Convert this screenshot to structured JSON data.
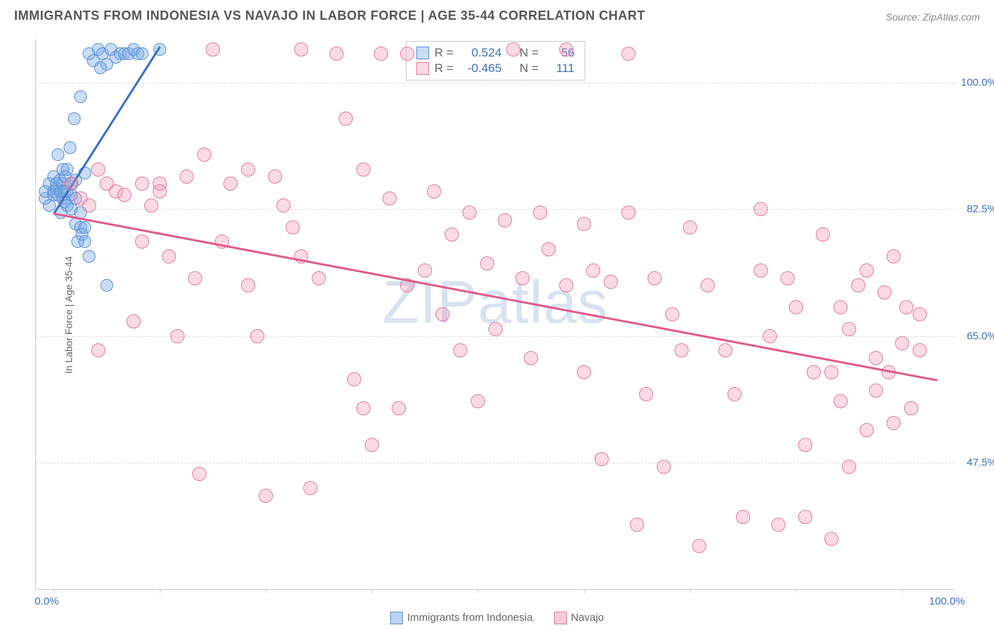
{
  "title": "IMMIGRANTS FROM INDONESIA VS NAVAJO IN LABOR FORCE | AGE 35-44 CORRELATION CHART",
  "source": "Source: ZipAtlas.com",
  "y_axis_title": "In Labor Force | Age 35-44",
  "watermark_bold": "ZIP",
  "watermark_light": "atlas",
  "x_labels": {
    "min": "0.0%",
    "max": "100.0%"
  },
  "y_ticks": [
    {
      "value": 100.0,
      "label": "100.0%"
    },
    {
      "value": 82.5,
      "label": "82.5%"
    },
    {
      "value": 65.0,
      "label": "65.0%"
    },
    {
      "value": 47.5,
      "label": "47.5%"
    }
  ],
  "x_ticks_pct": [
    0,
    12,
    24,
    36,
    48,
    60,
    72,
    84,
    96
  ],
  "x_range": [
    -2,
    102
  ],
  "y_range": [
    30,
    106
  ],
  "series": [
    {
      "name": "Immigrants from Indonesia",
      "key": "indonesia",
      "fill": "rgba(120,170,230,0.4)",
      "stroke": "#5a8fd6",
      "marker_radius": 9,
      "R_label": "R =",
      "R": "0.524",
      "N_label": "N =",
      "N": "56",
      "trend": {
        "x1": 0,
        "y1": 82,
        "x2": 12,
        "y2": 105,
        "color": "#3b6fc4"
      },
      "points": [
        [
          -1,
          84
        ],
        [
          -1,
          85
        ],
        [
          -0.5,
          86
        ],
        [
          -0.5,
          83
        ],
        [
          0,
          85
        ],
        [
          0,
          84.5
        ],
        [
          0,
          87
        ],
        [
          0.3,
          86
        ],
        [
          0.3,
          85.3
        ],
        [
          0.5,
          90
        ],
        [
          0.5,
          84.5
        ],
        [
          0.7,
          86.5
        ],
        [
          0.8,
          82
        ],
        [
          0.8,
          85
        ],
        [
          1,
          84
        ],
        [
          1,
          86
        ],
        [
          1,
          88
        ],
        [
          1.2,
          85
        ],
        [
          1.3,
          83.5
        ],
        [
          1.3,
          87
        ],
        [
          1.5,
          83
        ],
        [
          1.5,
          85
        ],
        [
          1.5,
          88
        ],
        [
          1.8,
          91
        ],
        [
          2,
          84.5
        ],
        [
          2,
          86
        ],
        [
          2,
          82.5
        ],
        [
          2.3,
          95
        ],
        [
          2.5,
          86.5
        ],
        [
          2.5,
          80.5
        ],
        [
          2.5,
          84
        ],
        [
          2.7,
          78
        ],
        [
          3,
          82
        ],
        [
          3,
          80
        ],
        [
          3,
          98
        ],
        [
          3.2,
          79
        ],
        [
          3.5,
          78
        ],
        [
          3.5,
          87.5
        ],
        [
          3.5,
          80
        ],
        [
          4,
          76
        ],
        [
          4,
          104
        ],
        [
          4.5,
          103
        ],
        [
          5,
          104.5
        ],
        [
          5.5,
          104
        ],
        [
          6,
          72
        ],
        [
          6.5,
          104.5
        ],
        [
          7,
          103.5
        ],
        [
          7.5,
          104
        ],
        [
          8,
          104
        ],
        [
          8.5,
          104
        ],
        [
          9,
          104.5
        ],
        [
          9.5,
          104
        ],
        [
          10,
          104
        ],
        [
          12,
          104.5
        ],
        [
          6,
          102.5
        ],
        [
          5.3,
          102
        ]
      ]
    },
    {
      "name": "Navajo",
      "key": "navajo",
      "fill": "rgba(240,150,180,0.35)",
      "stroke": "#e57aa0",
      "marker_radius": 10,
      "R_label": "R =",
      "R": "-0.465",
      "N_label": "N =",
      "N": "111",
      "trend": {
        "x1": 0,
        "y1": 82,
        "x2": 100,
        "y2": 59,
        "color": "#e05a8c"
      },
      "points": [
        [
          2,
          86
        ],
        [
          3,
          84
        ],
        [
          4,
          83
        ],
        [
          5,
          88
        ],
        [
          5,
          63
        ],
        [
          6,
          86
        ],
        [
          7,
          85
        ],
        [
          8,
          84.5
        ],
        [
          9,
          67
        ],
        [
          10,
          78
        ],
        [
          10,
          86
        ],
        [
          11,
          83
        ],
        [
          12,
          86
        ],
        [
          12,
          85
        ],
        [
          13,
          76
        ],
        [
          14,
          65
        ],
        [
          15,
          87
        ],
        [
          16,
          73
        ],
        [
          16.5,
          46
        ],
        [
          17,
          90
        ],
        [
          18,
          104.5
        ],
        [
          19,
          78
        ],
        [
          20,
          86
        ],
        [
          22,
          88
        ],
        [
          22,
          72
        ],
        [
          23,
          65
        ],
        [
          24,
          43
        ],
        [
          25,
          87
        ],
        [
          26,
          83
        ],
        [
          27,
          80
        ],
        [
          28,
          76
        ],
        [
          28,
          104.5
        ],
        [
          29,
          44
        ],
        [
          30,
          73
        ],
        [
          32,
          104
        ],
        [
          33,
          95
        ],
        [
          34,
          59
        ],
        [
          35,
          55
        ],
        [
          35,
          88
        ],
        [
          36,
          50
        ],
        [
          37,
          104
        ],
        [
          38,
          84
        ],
        [
          39,
          55
        ],
        [
          40,
          104
        ],
        [
          40,
          72
        ],
        [
          42,
          74
        ],
        [
          43,
          85
        ],
        [
          44,
          68
        ],
        [
          45,
          79
        ],
        [
          46,
          63
        ],
        [
          47,
          82
        ],
        [
          48,
          56
        ],
        [
          49,
          75
        ],
        [
          50,
          66
        ],
        [
          51,
          81
        ],
        [
          52,
          104.5
        ],
        [
          53,
          73
        ],
        [
          54,
          62
        ],
        [
          55,
          82
        ],
        [
          56,
          77
        ],
        [
          58,
          72
        ],
        [
          58,
          104.5
        ],
        [
          60,
          80.5
        ],
        [
          60,
          60
        ],
        [
          61,
          74
        ],
        [
          62,
          48
        ],
        [
          63,
          72.5
        ],
        [
          65,
          82
        ],
        [
          65,
          104
        ],
        [
          66,
          39
        ],
        [
          67,
          57
        ],
        [
          68,
          73
        ],
        [
          69,
          47
        ],
        [
          70,
          68
        ],
        [
          71,
          63
        ],
        [
          72,
          80
        ],
        [
          73,
          36
        ],
        [
          74,
          72
        ],
        [
          76,
          63
        ],
        [
          77,
          57
        ],
        [
          78,
          40
        ],
        [
          80,
          74
        ],
        [
          80,
          82.5
        ],
        [
          81,
          65
        ],
        [
          82,
          39
        ],
        [
          83,
          73
        ],
        [
          84,
          69
        ],
        [
          85,
          50
        ],
        [
          85,
          40
        ],
        [
          86,
          60
        ],
        [
          87,
          79
        ],
        [
          88,
          60
        ],
        [
          88,
          37
        ],
        [
          89,
          56
        ],
        [
          89,
          69
        ],
        [
          90,
          66
        ],
        [
          90,
          47
        ],
        [
          91,
          72
        ],
        [
          92,
          74
        ],
        [
          92,
          52
        ],
        [
          93,
          57.5
        ],
        [
          93,
          62
        ],
        [
          94,
          71
        ],
        [
          94.5,
          60
        ],
        [
          95,
          76
        ],
        [
          95,
          53
        ],
        [
          96,
          64
        ],
        [
          96.5,
          69
        ],
        [
          97,
          55
        ],
        [
          98,
          68
        ],
        [
          98,
          63
        ]
      ]
    }
  ],
  "legend_bottom": [
    {
      "swatch_fill": "rgba(120,170,230,0.5)",
      "swatch_stroke": "#5a8fd6",
      "label": "Immigrants from Indonesia"
    },
    {
      "swatch_fill": "rgba(240,150,180,0.5)",
      "swatch_stroke": "#e57aa0",
      "label": "Navajo"
    }
  ]
}
